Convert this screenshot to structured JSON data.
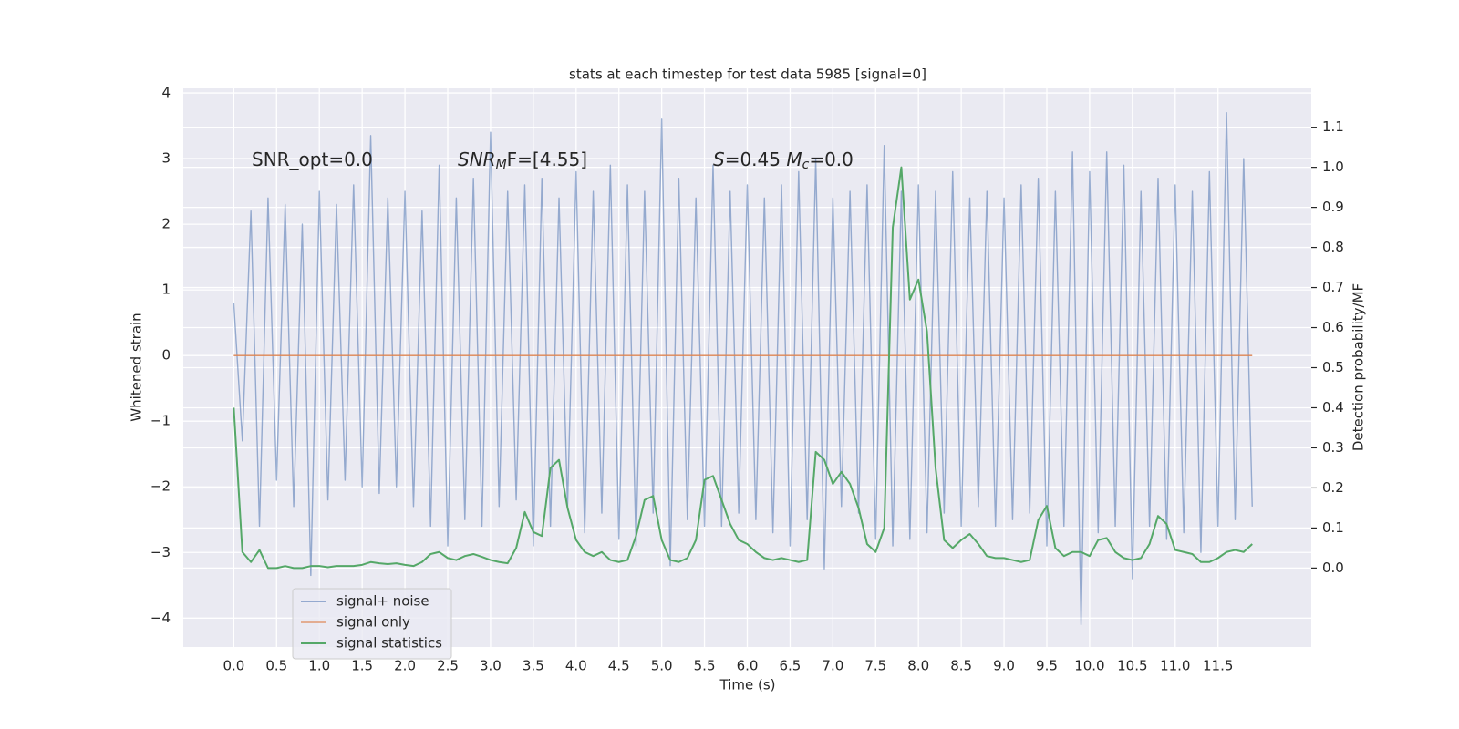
{
  "chart_data": {
    "type": "line",
    "title": "stats at each timestep for test data 5985 [signal=0]",
    "x_label": "Time (s)",
    "y_label": "Whitened strain",
    "y2_label": "Detection probability/MF",
    "annotations": [
      [
        "SNR_opt=0.0"
      ],
      [
        "SNR",
        "M",
        "F=[4.55]"
      ],
      [
        "S",
        "=0.45   ",
        "M",
        "c",
        "=0.0"
      ]
    ],
    "grid": true,
    "legend": "lower left",
    "xlim": [
      -0.59,
      12.59
    ],
    "ylim": [
      -4.44,
      4.07
    ],
    "y2lim": [
      -0.197,
      1.197
    ],
    "xticks": [
      {
        "value": 0,
        "label": "0.0"
      },
      {
        "value": 0.5,
        "label": "0.5"
      },
      {
        "value": 1,
        "label": "1.0"
      },
      {
        "value": 1.5,
        "label": "1.5"
      },
      {
        "value": 2,
        "label": "2.0"
      },
      {
        "value": 2.5,
        "label": "2.5"
      },
      {
        "value": 3,
        "label": "3.0"
      },
      {
        "value": 3.5,
        "label": "3.5"
      },
      {
        "value": 4,
        "label": "4.0"
      },
      {
        "value": 4.5,
        "label": "4.5"
      },
      {
        "value": 5,
        "label": "5.0"
      },
      {
        "value": 5.5,
        "label": "5.5"
      },
      {
        "value": 6,
        "label": "6.0"
      },
      {
        "value": 6.5,
        "label": "6.5"
      },
      {
        "value": 7,
        "label": "7.0"
      },
      {
        "value": 7.5,
        "label": "7.5"
      },
      {
        "value": 8,
        "label": "8.0"
      },
      {
        "value": 8.5,
        "label": "8.5"
      },
      {
        "value": 9,
        "label": "9.0"
      },
      {
        "value": 9.5,
        "label": "9.5"
      },
      {
        "value": 10,
        "label": "10.0"
      },
      {
        "value": 10.5,
        "label": "10.5"
      },
      {
        "value": 11,
        "label": "11.0"
      },
      {
        "value": 11.5,
        "label": "11.5"
      }
    ],
    "yticks": [
      4,
      3,
      2,
      1,
      0,
      {
        "value": -1,
        "label": "−1"
      },
      {
        "value": -2,
        "label": "−2"
      },
      {
        "value": -3,
        "label": "−3"
      },
      {
        "value": -4,
        "label": "−4"
      }
    ],
    "y2ticks": [
      {
        "value": 0,
        "label": "0.0"
      },
      {
        "value": 0.1,
        "label": "0.1"
      },
      {
        "value": 0.2,
        "label": "0.2"
      },
      {
        "value": 0.3,
        "label": "0.3"
      },
      {
        "value": 0.4,
        "label": "0.4"
      },
      {
        "value": 0.5,
        "label": "0.5"
      },
      {
        "value": 0.6,
        "label": "0.6"
      },
      {
        "value": 0.7,
        "label": "0.7"
      },
      {
        "value": 0.8,
        "label": "0.8"
      },
      {
        "value": 0.9,
        "label": "0.9"
      },
      {
        "value": 1,
        "label": "1.0"
      },
      {
        "value": 1.1,
        "label": "1.1"
      }
    ],
    "x": [
      0,
      0.1,
      0.2,
      0.3,
      0.4,
      0.5,
      0.6,
      0.7,
      0.8,
      0.9,
      1.0,
      1.1,
      1.2,
      1.3,
      1.4,
      1.5,
      1.6,
      1.7,
      1.8,
      1.9,
      2.0,
      2.1,
      2.2,
      2.3,
      2.4,
      2.5,
      2.6,
      2.7,
      2.8,
      2.9,
      3.0,
      3.1,
      3.2,
      3.3,
      3.4,
      3.5,
      3.6,
      3.7,
      3.8,
      3.9,
      4.0,
      4.1,
      4.2,
      4.3,
      4.4,
      4.5,
      4.6,
      4.7,
      4.8,
      4.9,
      5.0,
      5.1,
      5.2,
      5.3,
      5.4,
      5.5,
      5.6,
      5.7,
      5.8,
      5.9,
      6.0,
      6.1,
      6.2,
      6.3,
      6.4,
      6.5,
      6.6,
      6.7,
      6.8,
      6.9,
      7.0,
      7.1,
      7.2,
      7.3,
      7.4,
      7.5,
      7.6,
      7.7,
      7.8,
      7.9,
      8.0,
      8.1,
      8.2,
      8.3,
      8.4,
      8.5,
      8.6,
      8.7,
      8.8,
      8.9,
      9.0,
      9.1,
      9.2,
      9.3,
      9.4,
      9.5,
      9.6,
      9.7,
      9.8,
      9.9,
      10.0,
      10.1,
      10.2,
      10.3,
      10.4,
      10.5,
      10.6,
      10.7,
      10.8,
      10.9,
      11.0,
      11.1,
      11.2,
      11.3,
      11.4,
      11.5,
      11.6,
      11.7,
      11.8,
      11.9
    ],
    "series": [
      {
        "name": "signal+ noise",
        "color": "#4c72b0",
        "alpha": 0.55,
        "values": [
          0.8,
          -1.3,
          2.2,
          -2.6,
          2.4,
          -1.9,
          2.3,
          -2.3,
          2.0,
          -3.35,
          2.5,
          -2.2,
          2.3,
          -1.9,
          2.6,
          -2.0,
          3.35,
          -2.1,
          2.4,
          -2.0,
          2.5,
          -2.3,
          2.2,
          -2.6,
          2.9,
          -2.9,
          2.4,
          -2.5,
          2.7,
          -2.6,
          3.4,
          -2.3,
          2.5,
          -2.2,
          2.6,
          -2.9,
          2.7,
          -2.6,
          2.4,
          -2.3,
          2.8,
          -2.7,
          2.5,
          -2.4,
          2.9,
          -2.8,
          2.6,
          -2.9,
          2.5,
          -2.4,
          3.6,
          -3.2,
          2.7,
          -2.5,
          2.4,
          -2.6,
          2.9,
          -2.6,
          2.5,
          -2.4,
          2.6,
          -2.5,
          2.4,
          -2.7,
          2.6,
          -2.9,
          2.8,
          -2.5,
          3.0,
          -3.25,
          2.4,
          -2.3,
          2.5,
          -2.4,
          2.6,
          -2.8,
          3.2,
          -2.9,
          2.5,
          -2.8,
          2.6,
          -2.7,
          2.5,
          -2.4,
          2.8,
          -2.6,
          2.4,
          -2.3,
          2.5,
          -2.6,
          2.4,
          -2.5,
          2.6,
          -2.4,
          2.7,
          -2.9,
          2.5,
          -2.6,
          3.1,
          -4.1,
          2.8,
          -2.7,
          3.1,
          -2.6,
          2.9,
          -3.4,
          2.5,
          -2.6,
          2.7,
          -2.8,
          2.6,
          -2.7,
          2.5,
          -3.0,
          2.8,
          -2.6,
          3.7,
          -2.5,
          3.0,
          -2.3
        ]
      },
      {
        "name": "signal only",
        "color": "#dd8452",
        "x": [
          0,
          11.9
        ],
        "values": [
          0,
          0
        ]
      },
      {
        "name": "signal statistics",
        "color": "#55a868",
        "axis": "y2",
        "values": [
          0.4,
          0.04,
          0.015,
          0.045,
          0.0,
          0.0,
          0.005,
          0.0,
          0.0,
          0.005,
          0.005,
          0.002,
          0.005,
          0.005,
          0.005,
          0.008,
          0.015,
          0.012,
          0.01,
          0.012,
          0.008,
          0.005,
          0.015,
          0.035,
          0.04,
          0.025,
          0.02,
          0.03,
          0.035,
          0.028,
          0.02,
          0.015,
          0.012,
          0.05,
          0.14,
          0.09,
          0.08,
          0.25,
          0.27,
          0.15,
          0.07,
          0.04,
          0.03,
          0.04,
          0.02,
          0.015,
          0.02,
          0.08,
          0.17,
          0.18,
          0.07,
          0.02,
          0.015,
          0.025,
          0.07,
          0.22,
          0.23,
          0.17,
          0.11,
          0.07,
          0.06,
          0.04,
          0.025,
          0.02,
          0.025,
          0.02,
          0.015,
          0.02,
          0.29,
          0.27,
          0.21,
          0.24,
          0.21,
          0.15,
          0.06,
          0.04,
          0.1,
          0.85,
          1.0,
          0.67,
          0.72,
          0.59,
          0.25,
          0.07,
          0.05,
          0.07,
          0.085,
          0.06,
          0.03,
          0.025,
          0.025,
          0.02,
          0.015,
          0.02,
          0.12,
          0.155,
          0.05,
          0.03,
          0.04,
          0.04,
          0.03,
          0.07,
          0.075,
          0.04,
          0.025,
          0.02,
          0.025,
          0.06,
          0.13,
          0.11,
          0.045,
          0.04,
          0.035,
          0.015,
          0.015,
          0.025,
          0.04,
          0.045,
          0.04,
          0.06
        ]
      }
    ]
  }
}
